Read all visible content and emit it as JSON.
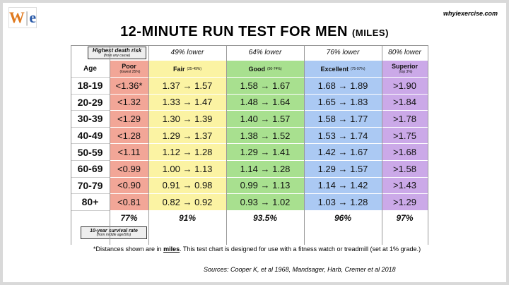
{
  "header": {
    "logo_left": "W",
    "logo_right": "e",
    "site": "whyiexercise.com",
    "title": "12-MINUTE RUN TEST FOR MEN",
    "title_unit": "(MILES)"
  },
  "table": {
    "risk_label": "Highest death risk",
    "risk_sublabel": "(from any cause)",
    "risk_reductions": [
      "49% lower",
      "64% lower",
      "76% lower",
      "80% lower"
    ],
    "age_header": "Age",
    "categories": [
      {
        "name": "Poor",
        "range": "(lowest 25%)"
      },
      {
        "name": "Fair",
        "range": "(25-49%)"
      },
      {
        "name": "Good",
        "range": "(50-74%)"
      },
      {
        "name": "Excellent",
        "range": "(75-97%)"
      },
      {
        "name": "Superior",
        "range": "(top 3%)"
      }
    ],
    "rows": [
      [
        "18-19",
        "<1.36*",
        "1.37 → 1.57",
        "1.58 → 1.67",
        "1.68 → 1.89",
        ">1.90"
      ],
      [
        "20-29",
        "<1.32",
        "1.33 → 1.47",
        "1.48 → 1.64",
        "1.65 → 1.83",
        ">1.84"
      ],
      [
        "30-39",
        "<1.29",
        "1.30 → 1.39",
        "1.40 → 1.57",
        "1.58 → 1.77",
        ">1.78"
      ],
      [
        "40-49",
        "<1.28",
        "1.29 → 1.37",
        "1.38 → 1.52",
        "1.53 → 1.74",
        ">1.75"
      ],
      [
        "50-59",
        "<1.11",
        "1.12 → 1.28",
        "1.29 → 1.41",
        "1.42 → 1.67",
        ">1.68"
      ],
      [
        "60-69",
        "<0.99",
        "1.00 → 1.13",
        "1.14 → 1.28",
        "1.29 → 1.57",
        ">1.58"
      ],
      [
        "70-79",
        "<0.90",
        "0.91 → 0.98",
        "0.99 → 1.13",
        "1.14 → 1.42",
        ">1.43"
      ],
      [
        "80+",
        "<0.81",
        "0.82 → 0.92",
        "0.93 → 1.02",
        "1.03 → 1.28",
        ">1.29"
      ]
    ],
    "survival": [
      "77%",
      "91%",
      "93.5%",
      "96%",
      "97%"
    ],
    "survival_label": "10-year survival rate",
    "survival_sublabel": "(from middle age/50s)"
  },
  "footnote": {
    "before": "*Distances shown are in ",
    "emphasis": "miles",
    "after": ".  This test chart is designed for use with a fitness watch or treadmill (set at 1% grade.)"
  },
  "sources": "Sources:  Cooper K, et al 1968, Mandsager, Harb, Cremer et al 2018"
}
